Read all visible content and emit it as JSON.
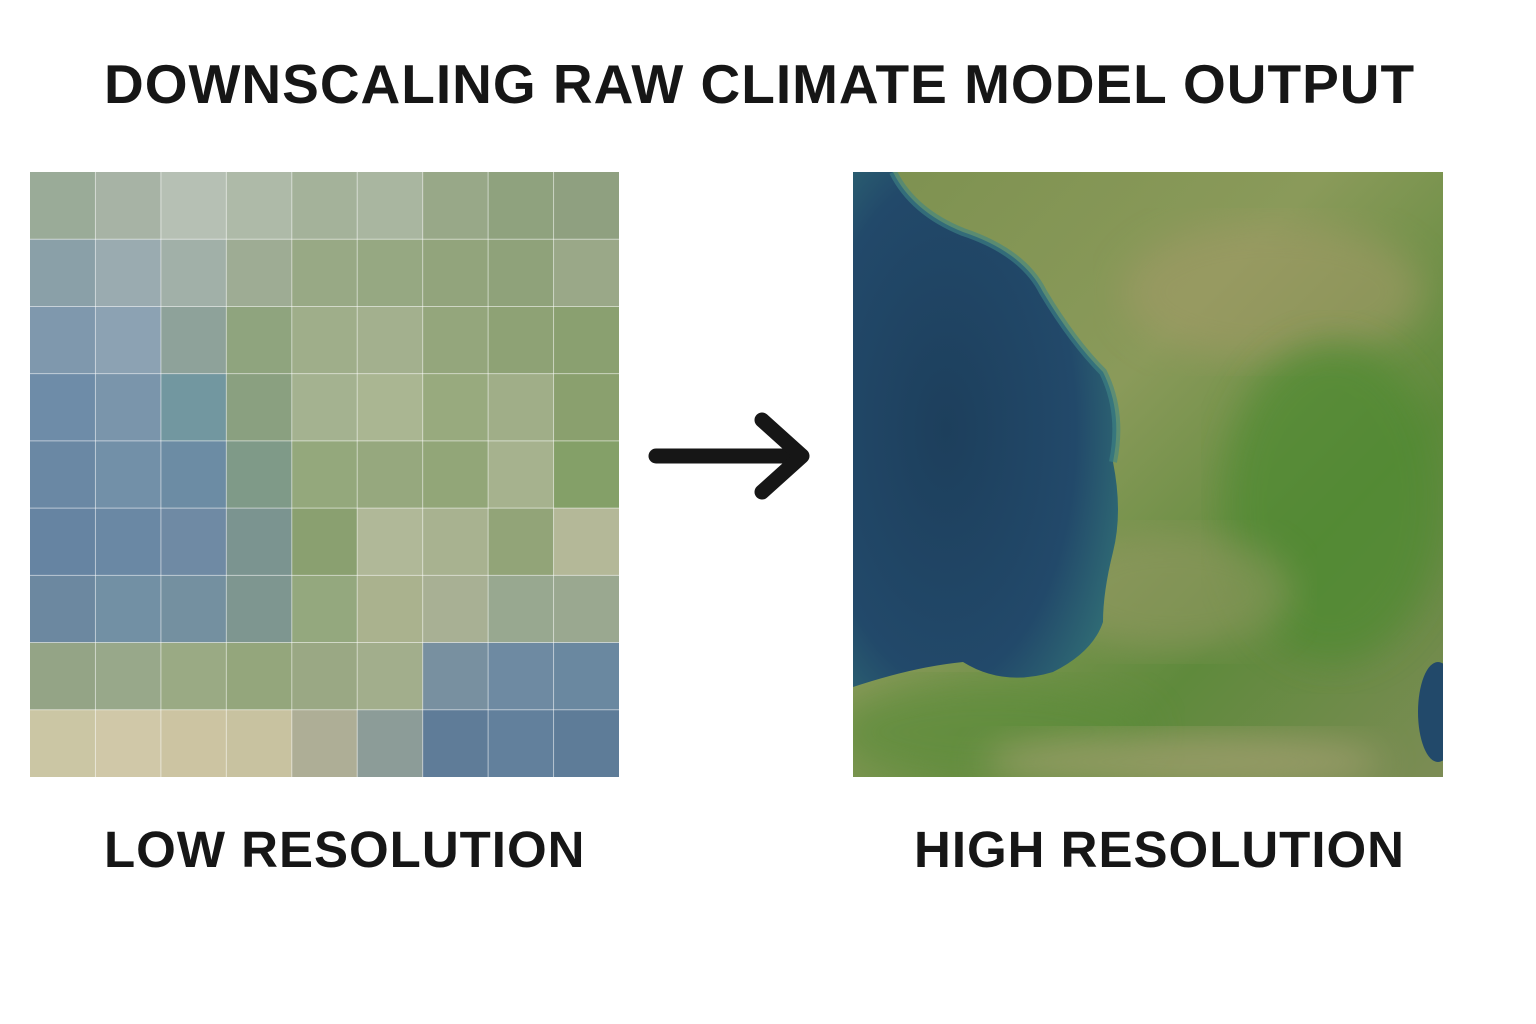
{
  "header": {
    "title": "DOWNSCALING RAW CLIMATE MODEL OUTPUT"
  },
  "panels": [
    {
      "label": "LOW RESOLUTION"
    },
    {
      "label": "HIGH RESOLUTION"
    }
  ]
}
